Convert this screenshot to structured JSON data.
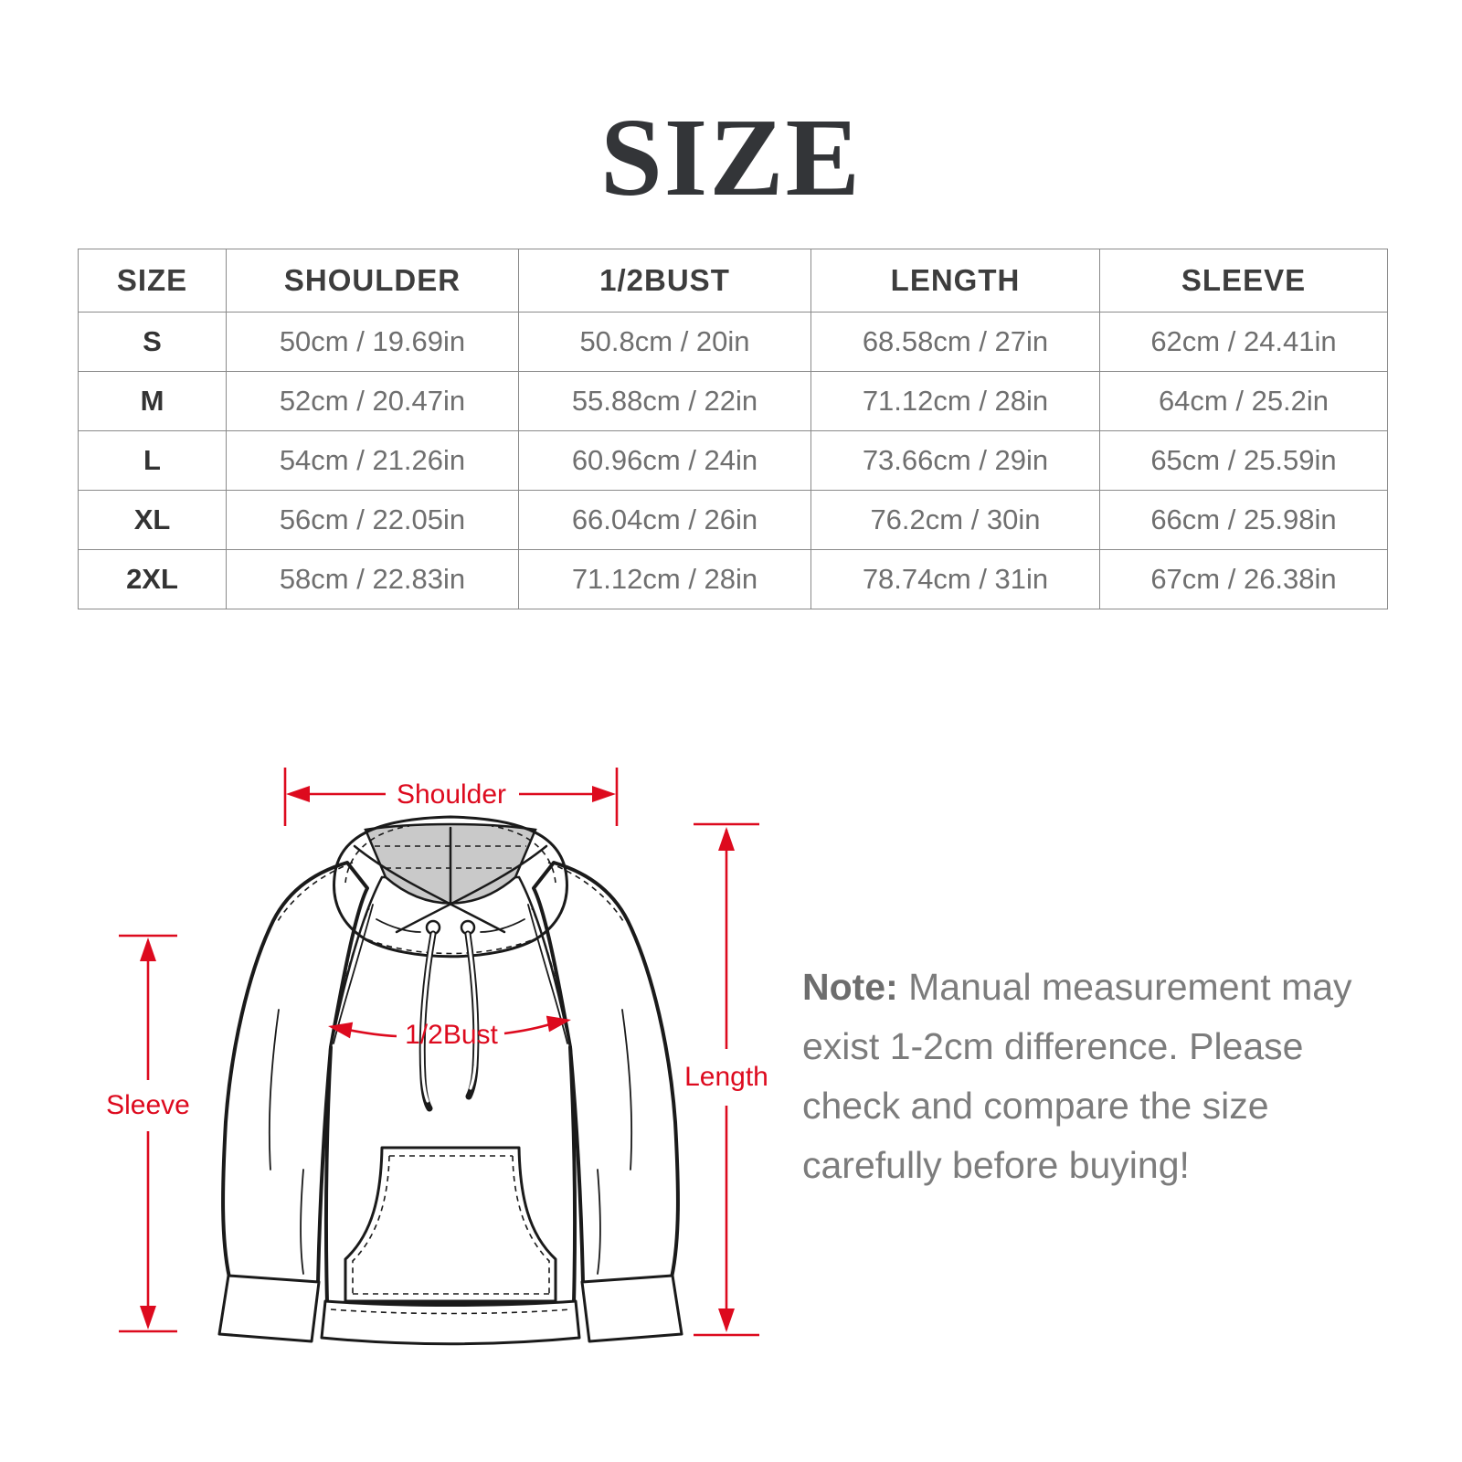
{
  "title": "SIZE",
  "table": {
    "headers": [
      "SIZE",
      "SHOULDER",
      "1/2BUST",
      "LENGTH",
      "SLEEVE"
    ],
    "rows": [
      [
        "S",
        "50cm / 19.69in",
        "50.8cm / 20in",
        "68.58cm / 27in",
        "62cm / 24.41in"
      ],
      [
        "M",
        "52cm / 20.47in",
        "55.88cm / 22in",
        "71.12cm / 28in",
        "64cm / 25.2in"
      ],
      [
        "L",
        "54cm / 21.26in",
        "60.96cm / 24in",
        "73.66cm / 29in",
        "65cm / 25.59in"
      ],
      [
        "XL",
        "56cm / 22.05in",
        "66.04cm / 26in",
        "76.2cm / 30in",
        "66cm / 25.98in"
      ],
      [
        "2XL",
        "58cm / 22.83in",
        "71.12cm / 28in",
        "78.74cm / 31in",
        "67cm / 26.38in"
      ]
    ]
  },
  "diagram": {
    "labels": {
      "shoulder": "Shoulder",
      "bust": "1/2Bust",
      "length": "Length",
      "sleeve": "Sleeve"
    },
    "colors": {
      "accent": "#dd0a1e",
      "hood_interior": "#c9c9c9",
      "outline": "#1a1a1a"
    }
  },
  "note": {
    "prefix": "Note:",
    "lines": [
      "Manual measurement may",
      "exist 1-2cm difference. Please",
      "check and compare the size",
      "carefully before buying!"
    ]
  }
}
